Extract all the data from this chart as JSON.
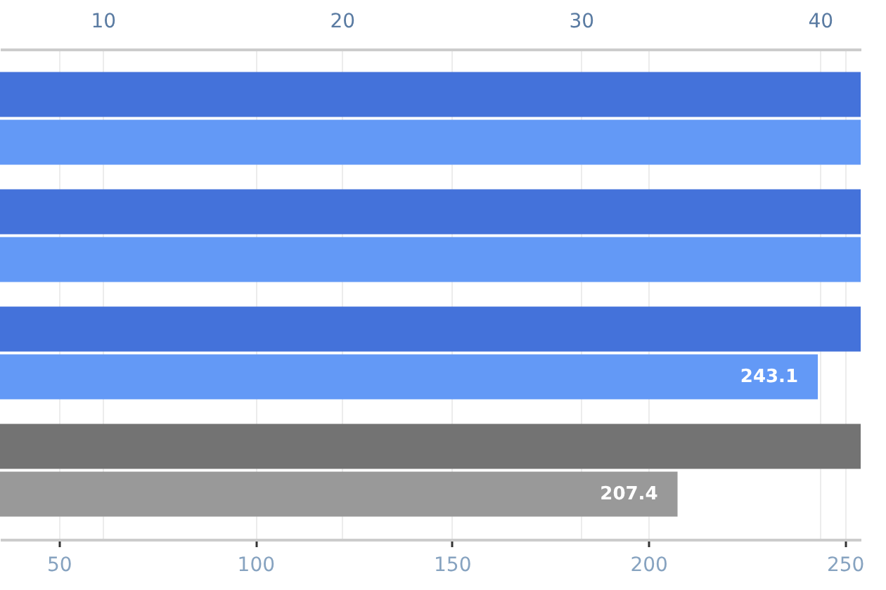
{
  "chart_data": {
    "type": "bar",
    "orientation": "horizontal",
    "categories": [
      null,
      null,
      null,
      null
    ],
    "series": [
      {
        "axis": "x2",
        "colors": [
          "#4472da",
          "#4472da",
          "#4472da",
          "#737373"
        ],
        "values": [
          41.7,
          41.7,
          41.7,
          41.7
        ]
      },
      {
        "colors": [
          "#6399f6",
          "#6399f6",
          "#6399f6",
          "#999999"
        ],
        "values": [
          254,
          254,
          243.1,
          207.4
        ],
        "value_labels": [
          null,
          null,
          "243.1",
          "207.4"
        ]
      }
    ],
    "xlim": [
      35,
      254
    ],
    "xticks": [
      50,
      100,
      150,
      200,
      250
    ],
    "x2lim": [
      5.7,
      41.7
    ],
    "x2ticks": [
      10,
      20,
      30,
      40
    ],
    "grid": true
  }
}
